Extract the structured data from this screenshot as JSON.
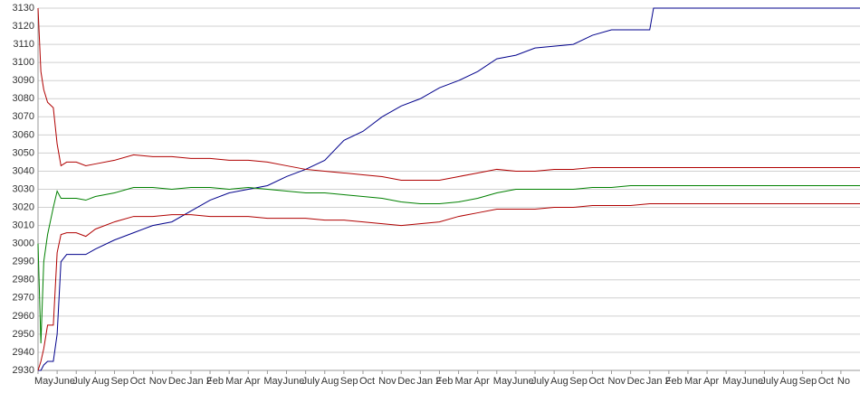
{
  "chart_data": {
    "type": "line",
    "x": [
      0,
      0.15,
      0.3,
      0.5,
      0.8,
      1,
      1.2,
      1.5,
      2,
      2.5,
      3,
      4,
      5,
      6,
      7,
      8,
      9,
      10,
      11,
      12,
      13,
      14,
      15,
      16,
      17,
      18,
      19,
      20,
      21,
      22,
      23,
      24,
      25,
      26,
      27,
      28,
      29,
      30,
      31,
      32,
      32.2,
      33,
      35,
      38,
      40,
      43
    ],
    "series": [
      {
        "color": "#00008b",
        "values": [
          2930,
          2930,
          2933,
          2935,
          2935,
          2950,
          2990,
          2994,
          2994,
          2994,
          2997,
          3002,
          3006,
          3010,
          3012,
          3018,
          3024,
          3028,
          3030,
          3032,
          3037,
          3041,
          3046,
          3057,
          3062,
          3070,
          3076,
          3080,
          3086,
          3090,
          3095,
          3102,
          3104,
          3108,
          3109,
          3110,
          3115,
          3118,
          3118,
          3118,
          3130,
          3130,
          3130,
          3130,
          3130,
          3130
        ]
      },
      {
        "color": "#008000",
        "values": [
          3000,
          2945,
          2990,
          3005,
          3020,
          3029,
          3025,
          3025,
          3025,
          3024,
          3026,
          3028,
          3031,
          3031,
          3030,
          3031,
          3031,
          3030,
          3031,
          3030,
          3029,
          3028,
          3028,
          3027,
          3026,
          3025,
          3023,
          3022,
          3022,
          3023,
          3025,
          3028,
          3030,
          3030,
          3030,
          3030,
          3031,
          3031,
          3032,
          3032,
          3032,
          3032,
          3032,
          3032,
          3032,
          3032
        ]
      },
      {
        "color": "#b00000",
        "values": [
          3130,
          3095,
          3085,
          3078,
          3075,
          3055,
          3043,
          3045,
          3045,
          3043,
          3044,
          3046,
          3049,
          3048,
          3048,
          3047,
          3047,
          3046,
          3046,
          3045,
          3043,
          3041,
          3040,
          3039,
          3038,
          3037,
          3035,
          3035,
          3035,
          3037,
          3039,
          3041,
          3040,
          3040,
          3041,
          3041,
          3042,
          3042,
          3042,
          3042,
          3042,
          3042,
          3042,
          3042,
          3042,
          3042
        ]
      },
      {
        "color": "#b00000",
        "values": [
          2930,
          2935,
          2942,
          2955,
          2955,
          2995,
          3005,
          3006,
          3006,
          3004,
          3008,
          3012,
          3015,
          3015,
          3016,
          3016,
          3015,
          3015,
          3015,
          3014,
          3014,
          3014,
          3013,
          3013,
          3012,
          3011,
          3010,
          3011,
          3012,
          3015,
          3017,
          3019,
          3019,
          3019,
          3020,
          3020,
          3021,
          3021,
          3021,
          3022,
          3022,
          3022,
          3022,
          3022,
          3022,
          3022
        ]
      }
    ],
    "xlim": [
      0,
      43
    ],
    "xticks": [
      {
        "value": 0,
        "label": "May"
      },
      {
        "value": 1,
        "label": "June"
      },
      {
        "value": 2,
        "label": "July"
      },
      {
        "value": 3,
        "label": "Aug"
      },
      {
        "value": 4,
        "label": "Sep"
      },
      {
        "value": 5,
        "label": "Oct"
      },
      {
        "value": 6,
        "label": "Nov"
      },
      {
        "value": 7,
        "label": "Dec"
      },
      {
        "value": 8,
        "label": "Jan 2"
      },
      {
        "value": 9,
        "label": "Feb"
      },
      {
        "value": 10,
        "label": "Mar"
      },
      {
        "value": 11,
        "label": "Apr"
      },
      {
        "value": 12,
        "label": "May"
      },
      {
        "value": 13,
        "label": "June"
      },
      {
        "value": 14,
        "label": "July"
      },
      {
        "value": 15,
        "label": "Aug"
      },
      {
        "value": 16,
        "label": "Sep"
      },
      {
        "value": 17,
        "label": "Oct"
      },
      {
        "value": 18,
        "label": "Nov"
      },
      {
        "value": 19,
        "label": "Dec"
      },
      {
        "value": 20,
        "label": "Jan 2"
      },
      {
        "value": 21,
        "label": "Feb"
      },
      {
        "value": 22,
        "label": "Mar"
      },
      {
        "value": 23,
        "label": "Apr"
      },
      {
        "value": 24,
        "label": "May"
      },
      {
        "value": 25,
        "label": "June"
      },
      {
        "value": 26,
        "label": "July"
      },
      {
        "value": 27,
        "label": "Aug"
      },
      {
        "value": 28,
        "label": "Sep"
      },
      {
        "value": 29,
        "label": "Oct"
      },
      {
        "value": 30,
        "label": "Nov"
      },
      {
        "value": 31,
        "label": "Dec"
      },
      {
        "value": 32,
        "label": "Jan 2"
      },
      {
        "value": 33,
        "label": "Feb"
      },
      {
        "value": 34,
        "label": "Mar"
      },
      {
        "value": 35,
        "label": "Apr"
      },
      {
        "value": 36,
        "label": "May"
      },
      {
        "value": 37,
        "label": "June"
      },
      {
        "value": 38,
        "label": "July"
      },
      {
        "value": 39,
        "label": "Aug"
      },
      {
        "value": 40,
        "label": "Sep"
      },
      {
        "value": 41,
        "label": "Oct"
      },
      {
        "value": 42,
        "label": "No"
      }
    ],
    "ylim": [
      2930,
      3130
    ],
    "yticks": [
      2930,
      2940,
      2950,
      2960,
      2970,
      2980,
      2990,
      3000,
      3010,
      3020,
      3030,
      3040,
      3050,
      3060,
      3070,
      3080,
      3090,
      3100,
      3110,
      3120,
      3130
    ],
    "grid": true
  }
}
